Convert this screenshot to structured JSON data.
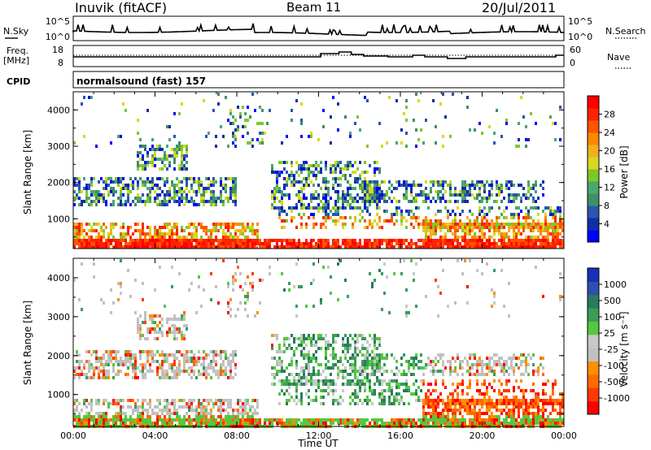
{
  "header": {
    "title": "Inuvik (fitACF)",
    "beam": "Beam 11",
    "date": "20/Jul/2011"
  },
  "top_panel": {
    "left_label_1": "N.Sky",
    "left_label_2": "Freq.",
    "left_label_3": "[MHz]",
    "left_label_4": "CPID",
    "right_label_1": "N.Search",
    "right_label_2": "Nave",
    "nsky_ticks": [
      "10^5",
      "10^0"
    ],
    "nsearch_ticks": [
      "10^5",
      "10^0"
    ],
    "freq_ticks": [
      "18",
      "8"
    ],
    "nave_ticks": [
      "60",
      "0"
    ],
    "cpid_text": "normalsound (fast) 157"
  },
  "chart_data": [
    {
      "type": "heatmap",
      "name": "power",
      "ylabel": "Slant Range [km]",
      "y_ticks": [
        1000,
        2000,
        3000,
        4000
      ],
      "ylim": [
        180,
        4500
      ],
      "xlim": [
        0,
        24
      ],
      "colorbar_label": "Power [dB]",
      "colorbar_ticks": [
        "28",
        "24",
        "20",
        "16",
        "12",
        "8",
        "4"
      ],
      "colorbar_colors": [
        "#0000ff",
        "#0f2fa8",
        "#2b55b0",
        "#3f8f63",
        "#4aa86a",
        "#7ec82b",
        "#d8d820",
        "#f0b020",
        "#ff8800",
        "#ff5500",
        "#ff2200",
        "#ff0000"
      ]
    },
    {
      "type": "heatmap",
      "name": "velocity",
      "ylabel": "Slant Range [km]",
      "xlabel": "Time UT",
      "y_ticks": [
        1000,
        2000,
        3000,
        4000
      ],
      "ylim": [
        180,
        4500
      ],
      "xlim": [
        0,
        24
      ],
      "x_ticks": [
        "00:00",
        "04:00",
        "08:00",
        "12:00",
        "16:00",
        "20:00",
        "00:00"
      ],
      "colorbar_label": "Velocity [m s⁻¹]",
      "colorbar_ticks": [
        "1000",
        "500",
        "100",
        "25",
        "-25",
        "-100",
        "-500",
        "-1000"
      ],
      "colorbar_colors": [
        "#ff0000",
        "#ff3a00",
        "#ff6a00",
        "#ff8f00",
        "#c0c0c0",
        "#c8c8c8",
        "#55c840",
        "#3a9c5a",
        "#2a7a60",
        "#2f4fae",
        "#1a2fb8"
      ]
    }
  ],
  "palette": {
    "grey": "#c0c0c0",
    "axis": "#000000"
  }
}
